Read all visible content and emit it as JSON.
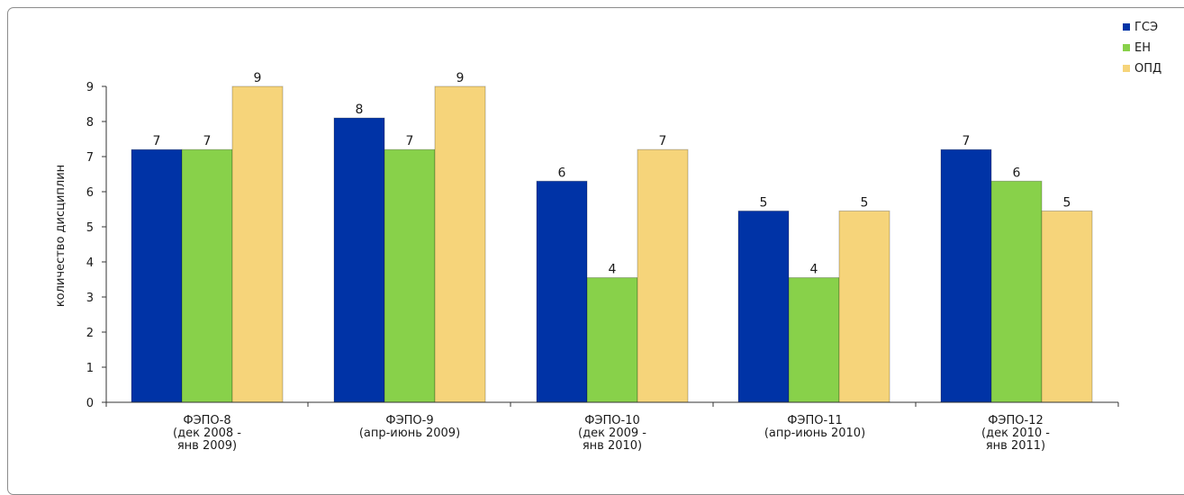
{
  "chart_data": {
    "type": "bar",
    "title": "",
    "xlabel": "",
    "ylabel": "количество дисциплин",
    "ylim": [
      0,
      9
    ],
    "yticks": [
      0,
      1,
      2,
      3,
      4,
      5,
      6,
      7,
      8,
      9
    ],
    "grid": false,
    "legend_position": "top-right",
    "categories": [
      [
        "ФЭПО-8",
        "(дек 2008 -",
        "янв 2009)"
      ],
      [
        "ФЭПО-9",
        "(апр-июнь 2009)"
      ],
      [
        "ФЭПО-10",
        "(дек 2009 -",
        "янв 2010)"
      ],
      [
        "ФЭПО-11",
        "(апр-июнь 2010)"
      ],
      [
        "ФЭПО-12",
        "(дек 2010 -",
        "янв 2011)"
      ]
    ],
    "series": [
      {
        "name": "ГСЭ",
        "color": "#0033a6",
        "values": [
          7,
          8,
          6,
          5,
          7
        ],
        "drawn": [
          7.2,
          8.1,
          6.3,
          5.45,
          7.2
        ]
      },
      {
        "name": "ЕН",
        "color": "#88d14a",
        "values": [
          7,
          7,
          4,
          4,
          6
        ],
        "drawn": [
          7.2,
          7.2,
          3.55,
          3.55,
          6.3
        ]
      },
      {
        "name": "ОПД",
        "color": "#f6d47a",
        "values": [
          9,
          9,
          7,
          5,
          5
        ],
        "drawn": [
          9,
          9,
          7.2,
          5.45,
          5.45
        ]
      }
    ]
  }
}
